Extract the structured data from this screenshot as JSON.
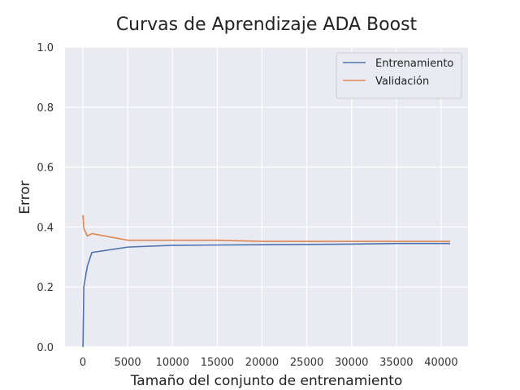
{
  "chart_data": {
    "type": "line",
    "title": "Curvas de Aprendizaje ADA Boost",
    "xlabel": "Tamaño del conjunto de entrenamiento",
    "ylabel": "Error",
    "xlim": [
      -2000,
      43000
    ],
    "ylim": [
      0.0,
      1.0
    ],
    "xticks": [
      0,
      5000,
      10000,
      15000,
      20000,
      25000,
      30000,
      35000,
      40000
    ],
    "yticks": [
      0.0,
      0.2,
      0.4,
      0.6,
      0.8,
      1.0
    ],
    "xtick_labels": [
      "0",
      "5000",
      "10000",
      "15000",
      "20000",
      "25000",
      "30000",
      "35000",
      "40000"
    ],
    "ytick_labels": [
      "0.0",
      "0.2",
      "0.4",
      "0.6",
      "0.8",
      "1.0"
    ],
    "grid": true,
    "legend_position": "top-right",
    "background": "#eaeaf2",
    "series": [
      {
        "name": "Entrenamiento",
        "color": "#4c72b0",
        "points": [
          [
            10,
            0.0
          ],
          [
            100,
            0.2
          ],
          [
            500,
            0.27
          ],
          [
            1000,
            0.315
          ],
          [
            5000,
            0.333
          ],
          [
            10000,
            0.339
          ],
          [
            20000,
            0.341
          ],
          [
            30000,
            0.343
          ],
          [
            35000,
            0.345
          ],
          [
            41000,
            0.345
          ]
        ]
      },
      {
        "name": "Validación",
        "color": "#dd8452",
        "points": [
          [
            10,
            0.44
          ],
          [
            100,
            0.395
          ],
          [
            500,
            0.37
          ],
          [
            1000,
            0.378
          ],
          [
            5000,
            0.356
          ],
          [
            10000,
            0.356
          ],
          [
            15000,
            0.356
          ],
          [
            20000,
            0.352
          ],
          [
            30000,
            0.352
          ],
          [
            41000,
            0.352
          ]
        ]
      }
    ]
  }
}
